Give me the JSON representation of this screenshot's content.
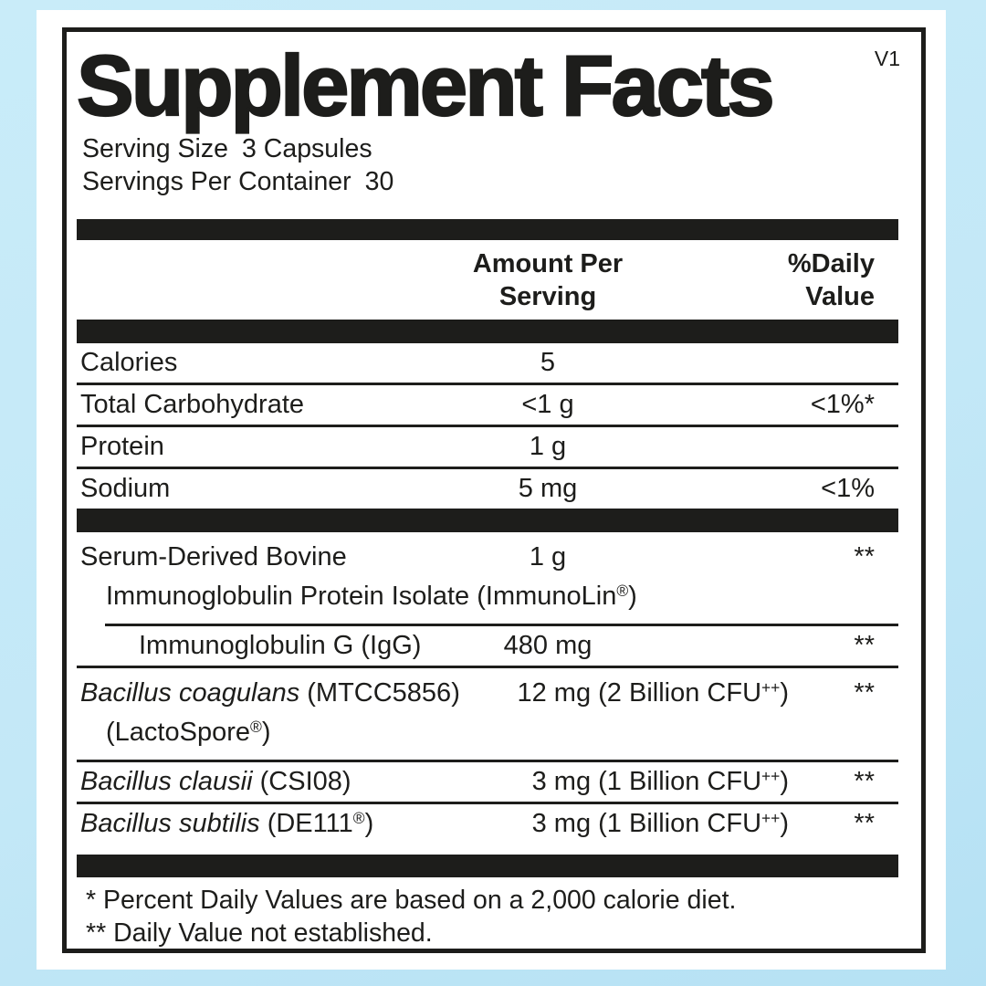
{
  "colors": {
    "ink": "#1d1d1b",
    "page_background_top": "#c9ecf9",
    "page_background_bottom": "#b5e1f4",
    "panel_background": "#ffffff"
  },
  "label": {
    "title": "Supplement Facts",
    "version_mark": "V1",
    "serving_lines": [
      {
        "label": "Serving Size",
        "value": "3 Capsules"
      },
      {
        "label": "Servings Per Container",
        "value": "30"
      }
    ],
    "columns": {
      "amount": [
        "Amount Per",
        "Serving"
      ],
      "daily_value": [
        "%Daily",
        "Value"
      ]
    },
    "nutrient_rows": [
      {
        "name": "Calories",
        "amount": "5",
        "dv": ""
      },
      {
        "name": "Total Carbohydrate",
        "amount": "<1 g",
        "dv": "<1%*"
      },
      {
        "name": "Protein",
        "amount": "1 g",
        "dv": ""
      },
      {
        "name": "Sodium",
        "amount": "5 mg",
        "dv": "<1%"
      }
    ],
    "supplement_rows": [
      {
        "rule_above": "none",
        "name_lines": [
          {
            "indent": 0,
            "tokens": [
              [
                "r",
                "Serum-Derived Bovine"
              ]
            ]
          },
          {
            "indent": 1,
            "tokens": [
              [
                "r",
                "Immunoglobulin Protein Isolate (ImmunoLin"
              ],
              [
                "sup",
                "®"
              ],
              [
                "r",
                ")"
              ]
            ]
          }
        ],
        "amount": {
          "align": "center",
          "tokens": [
            [
              "r",
              "1 g"
            ]
          ]
        },
        "dv": "**"
      },
      {
        "rule_above": "indent",
        "name_lines": [
          {
            "indent": 2,
            "tokens": [
              [
                "r",
                "Immunoglobulin G (IgG)"
              ]
            ]
          }
        ],
        "amount": {
          "align": "center",
          "tokens": [
            [
              "r",
              "480 mg"
            ]
          ]
        },
        "dv": "**"
      },
      {
        "rule_above": "full",
        "name_lines": [
          {
            "indent": 0,
            "tokens": [
              [
                "i",
                "Bacillus coagulans"
              ],
              [
                "r",
                " (MTCC5856)"
              ]
            ]
          },
          {
            "indent": 1,
            "tokens": [
              [
                "r",
                "(LactoSpore"
              ],
              [
                "sup",
                "®"
              ],
              [
                "r",
                ")"
              ]
            ]
          }
        ],
        "amount": {
          "align": "right",
          "tokens": [
            [
              "r",
              "12 mg (2 Billion CFU"
            ],
            [
              "sup",
              "++"
            ],
            [
              "r",
              ")"
            ]
          ]
        },
        "dv": "**"
      },
      {
        "rule_above": "full",
        "name_lines": [
          {
            "indent": 0,
            "tokens": [
              [
                "i",
                "Bacillus clausii"
              ],
              [
                "r",
                " (CSI08)"
              ]
            ]
          }
        ],
        "amount": {
          "align": "right",
          "tokens": [
            [
              "r",
              "3 mg (1 Billion CFU"
            ],
            [
              "sup",
              "++"
            ],
            [
              "r",
              ")"
            ]
          ]
        },
        "dv": "**"
      },
      {
        "rule_above": "full",
        "name_lines": [
          {
            "indent": 0,
            "tokens": [
              [
                "i",
                "Bacillus subtilis"
              ],
              [
                "r",
                " (DE111"
              ],
              [
                "sup",
                "®"
              ],
              [
                "r",
                ")"
              ]
            ]
          }
        ],
        "amount": {
          "align": "right",
          "tokens": [
            [
              "r",
              "3 mg (1 Billion CFU"
            ],
            [
              "sup",
              "++"
            ],
            [
              "r",
              ")"
            ]
          ]
        },
        "dv": "**"
      }
    ],
    "footnotes": [
      "* Percent Daily Values are based on a 2,000 calorie diet.",
      "** Daily Value not established."
    ]
  }
}
